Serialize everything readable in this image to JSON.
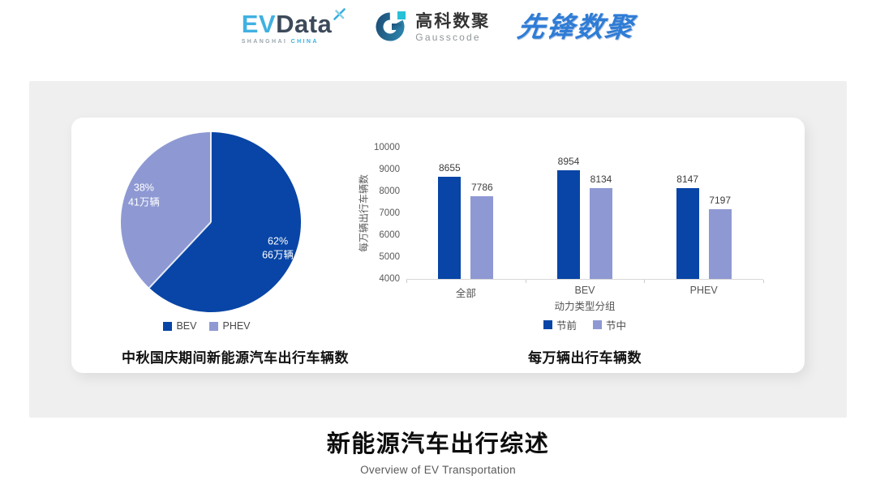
{
  "header": {
    "logos": {
      "evdata": {
        "ev": "EV",
        "data": "Data",
        "sub_left": "SHANGHAI",
        "sub_right": "CHINA"
      },
      "gausscode": {
        "cn": "高科数聚",
        "en": "Gausscode"
      },
      "pioneer": {
        "text": "先锋数聚"
      }
    }
  },
  "chart_data": [
    {
      "type": "pie",
      "title": "中秋国庆期间新能源汽车出行车辆数",
      "slices": [
        {
          "label": "BEV",
          "percent": 62,
          "value_label": "66万辆",
          "color": "#0845A6"
        },
        {
          "label": "PHEV",
          "percent": 38,
          "value_label": "41万辆",
          "color": "#8E99D3"
        }
      ],
      "start_angle_deg": 0,
      "direction": "clockwise",
      "legend_position": "bottom"
    },
    {
      "type": "bar",
      "title": "每万辆出行车辆数",
      "categories": [
        "全部",
        "BEV",
        "PHEV"
      ],
      "series": [
        {
          "name": "节前",
          "values": [
            8655,
            8954,
            8147
          ],
          "color": "#0845A6"
        },
        {
          "name": "节中",
          "values": [
            7786,
            8134,
            7197
          ],
          "color": "#8E99D3"
        }
      ],
      "xlabel": "动力类型分组",
      "ylabel": "每万辆出行车辆数",
      "ylim": [
        4000,
        10000
      ],
      "yticks": [
        4000,
        5000,
        6000,
        7000,
        8000,
        9000,
        10000
      ],
      "grid": false,
      "legend_position": "bottom"
    }
  ],
  "footer": {
    "title": "新能源汽车出行综述",
    "subtitle": "Overview of EV Transportation"
  }
}
